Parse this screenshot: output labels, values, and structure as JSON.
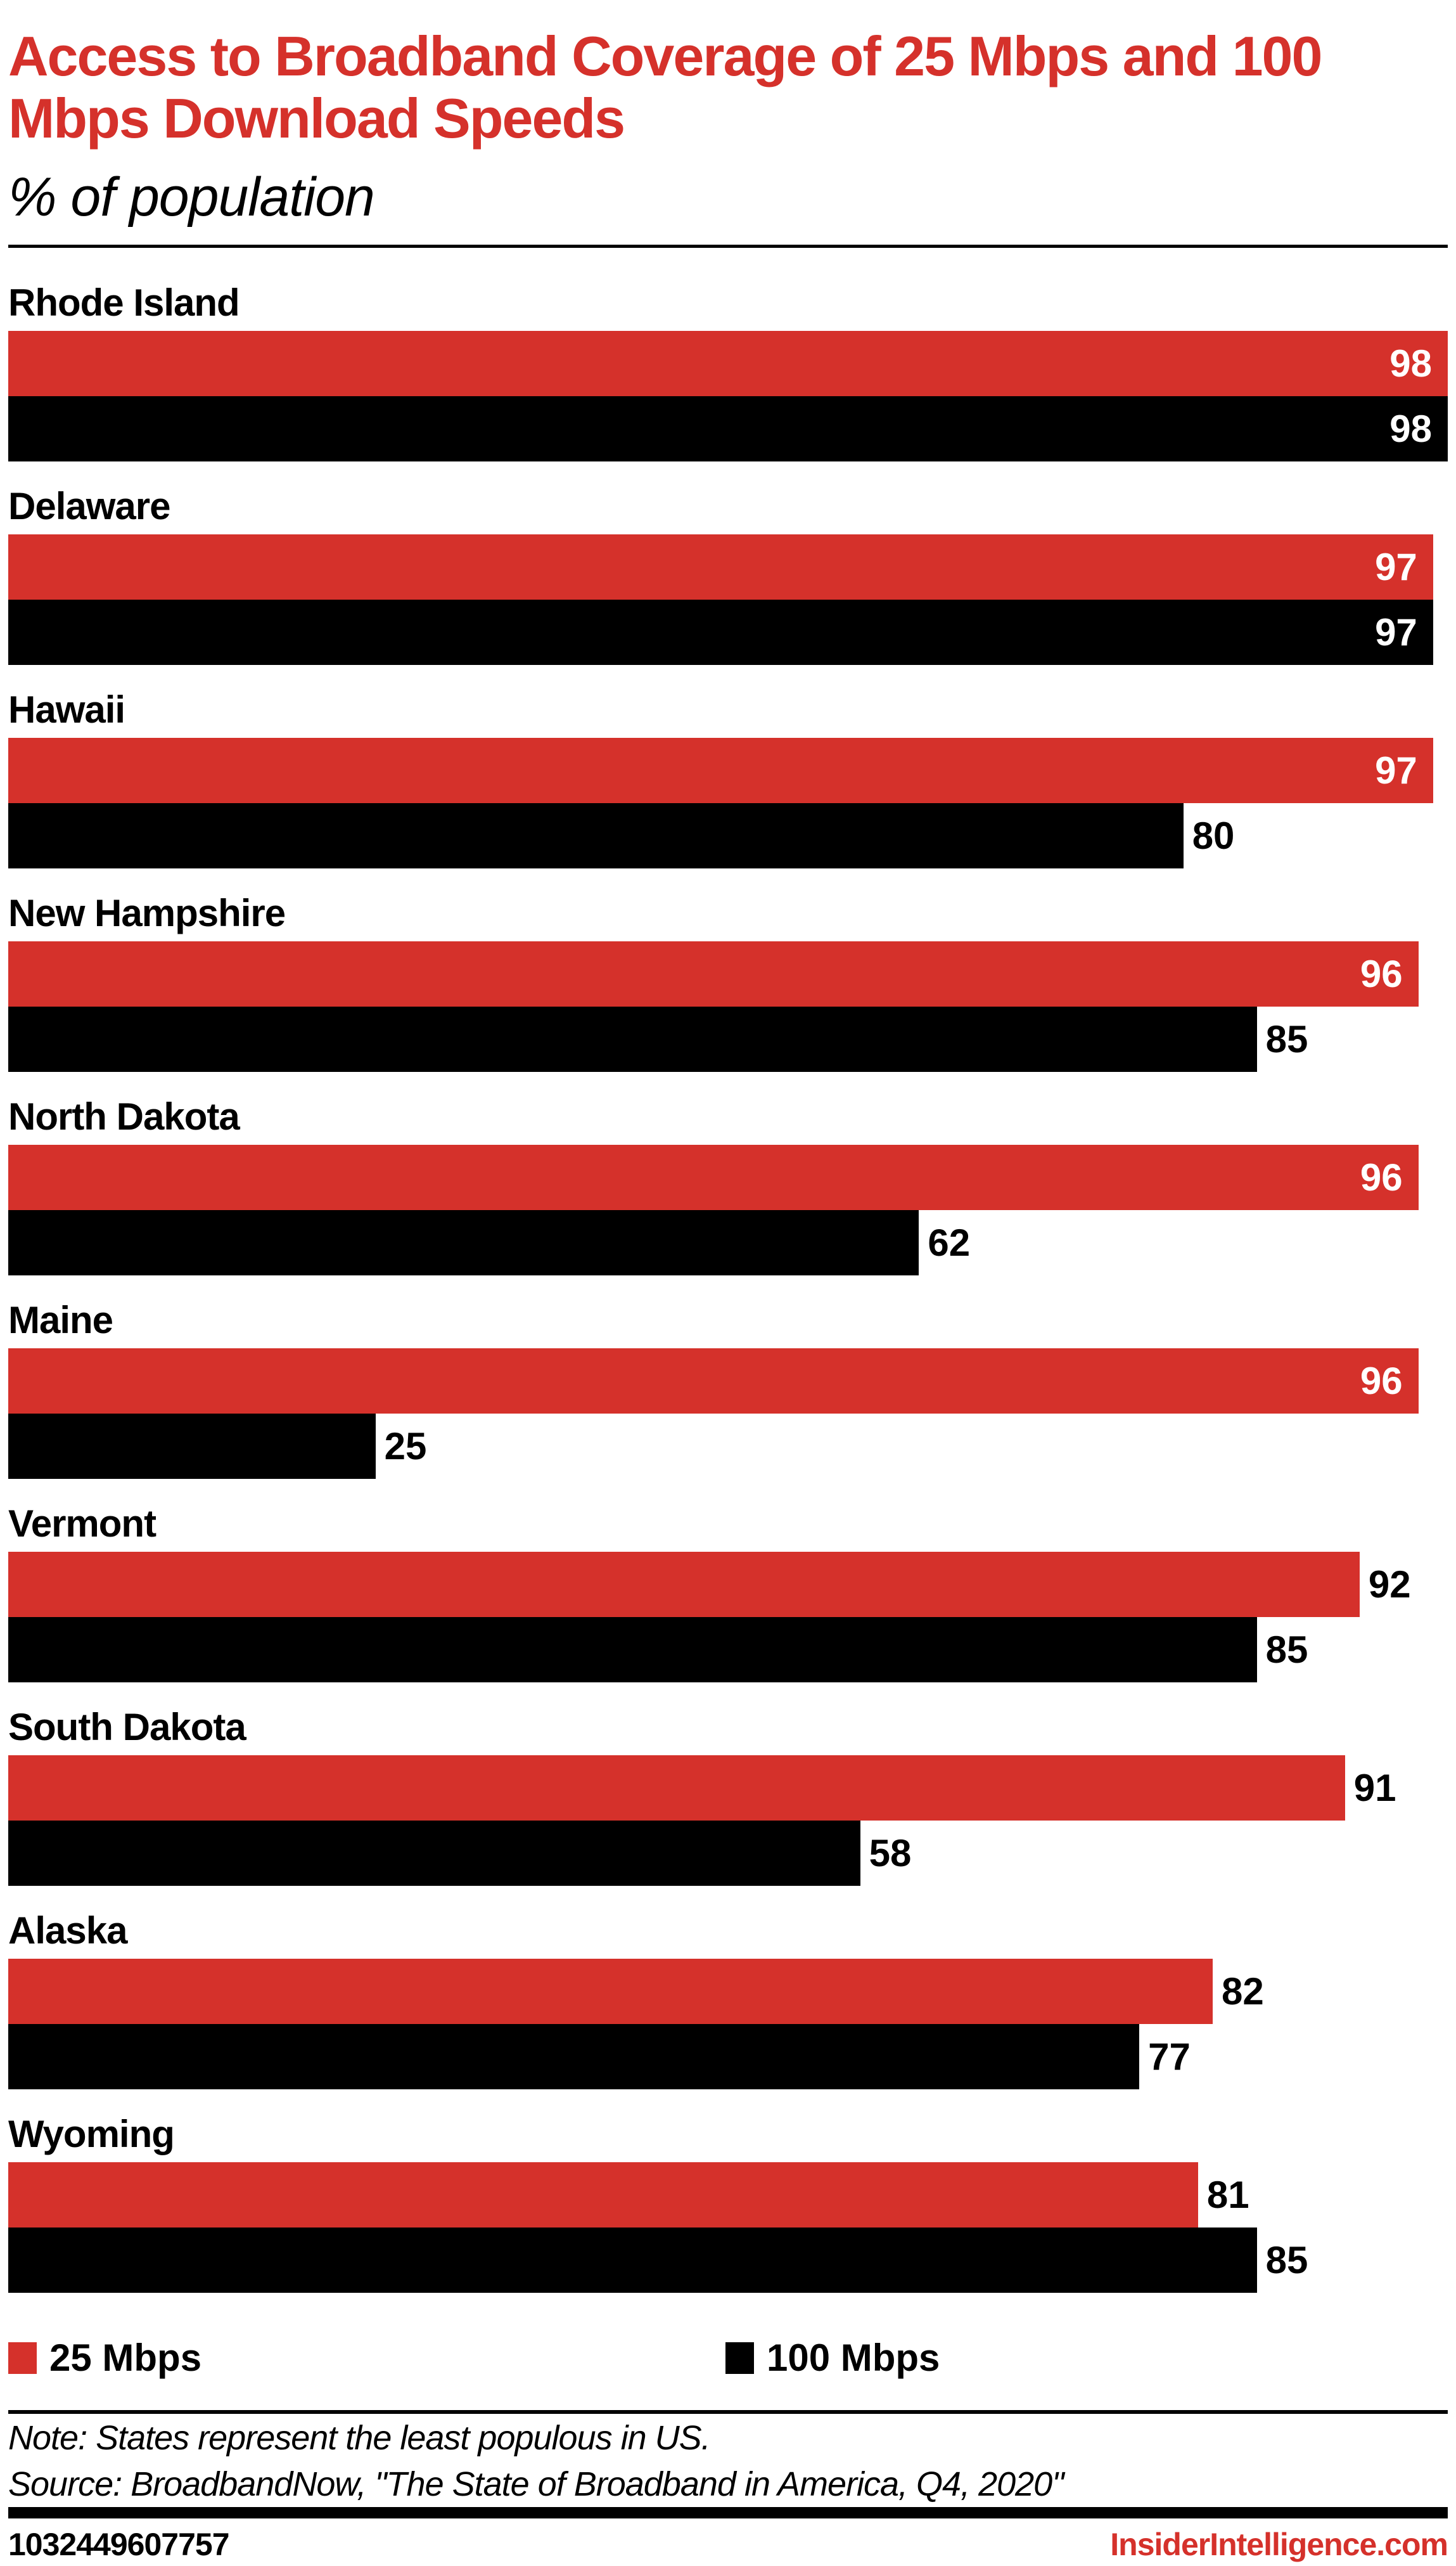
{
  "chart_data": {
    "type": "bar",
    "orientation": "horizontal",
    "title": "Access to Broadband Coverage of 25 Mbps and 100 Mbps Download Speeds",
    "subtitle": "% of population",
    "categories": [
      "Rhode Island",
      "Delaware",
      "Hawaii",
      "New Hampshire",
      "North Dakota",
      "Maine",
      "Vermont",
      "South Dakota",
      "Alaska",
      "Wyoming"
    ],
    "series": [
      {
        "name": "25 Mbps",
        "color": "#d5312b",
        "values": [
          98,
          97,
          97,
          96,
          96,
          96,
          92,
          91,
          82,
          81
        ]
      },
      {
        "name": "100 Mbps",
        "color": "#000000",
        "values": [
          98,
          97,
          80,
          85,
          62,
          25,
          85,
          58,
          77,
          85
        ]
      }
    ],
    "xlim": [
      0,
      98
    ],
    "grid": false,
    "legend_position": "bottom"
  },
  "footer": {
    "note": "Note: States represent the least populous in US.",
    "source": "Source: BroadbandNow, \"The State of Broadband in America, Q4, 2020\"",
    "chart_id": "1032449607757",
    "brand": "InsiderIntelligence.com"
  }
}
